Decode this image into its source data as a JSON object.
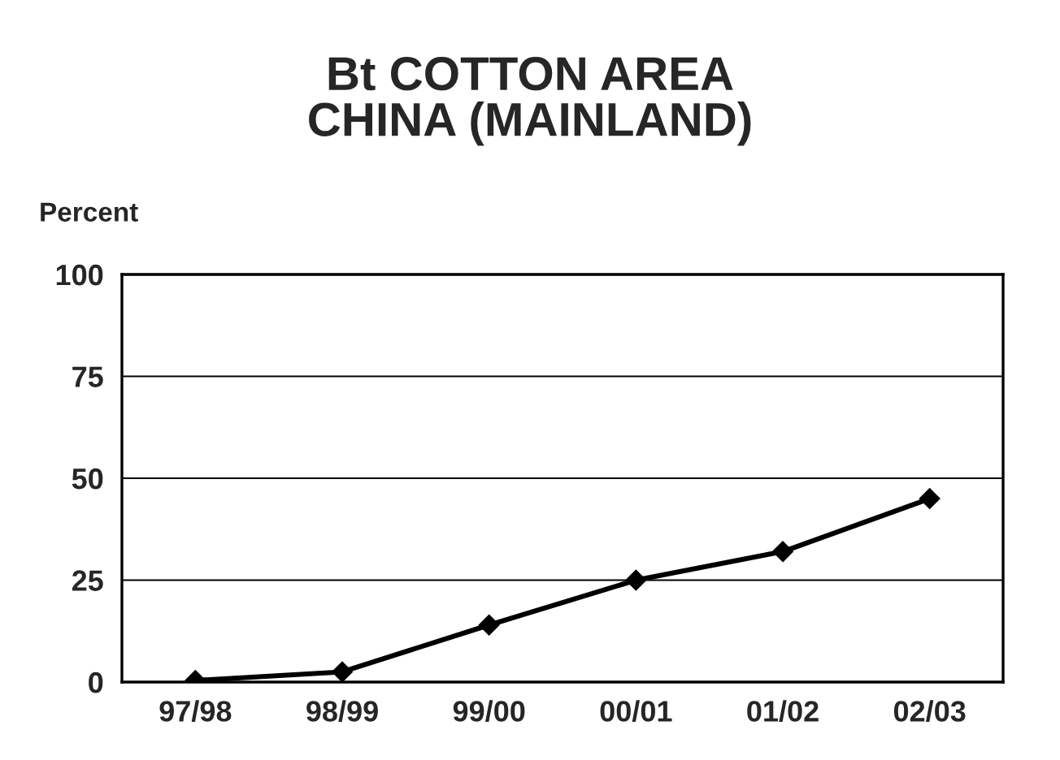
{
  "chart_data": {
    "type": "line",
    "title": "Bt COTTON AREA\nCHINA (MAINLAND)",
    "ylabel": "Percent",
    "categories": [
      "97/98",
      "98/99",
      "99/00",
      "00/01",
      "01/02",
      "02/03"
    ],
    "series": [
      {
        "color": "#000000",
        "values": [
          0.4,
          2.5,
          14,
          25,
          32,
          45
        ]
      }
    ],
    "ylim": [
      0,
      100
    ],
    "yticks": [
      0,
      25,
      50,
      75,
      100
    ],
    "grid": "y",
    "marker": "diamond",
    "line_style": "solid"
  }
}
